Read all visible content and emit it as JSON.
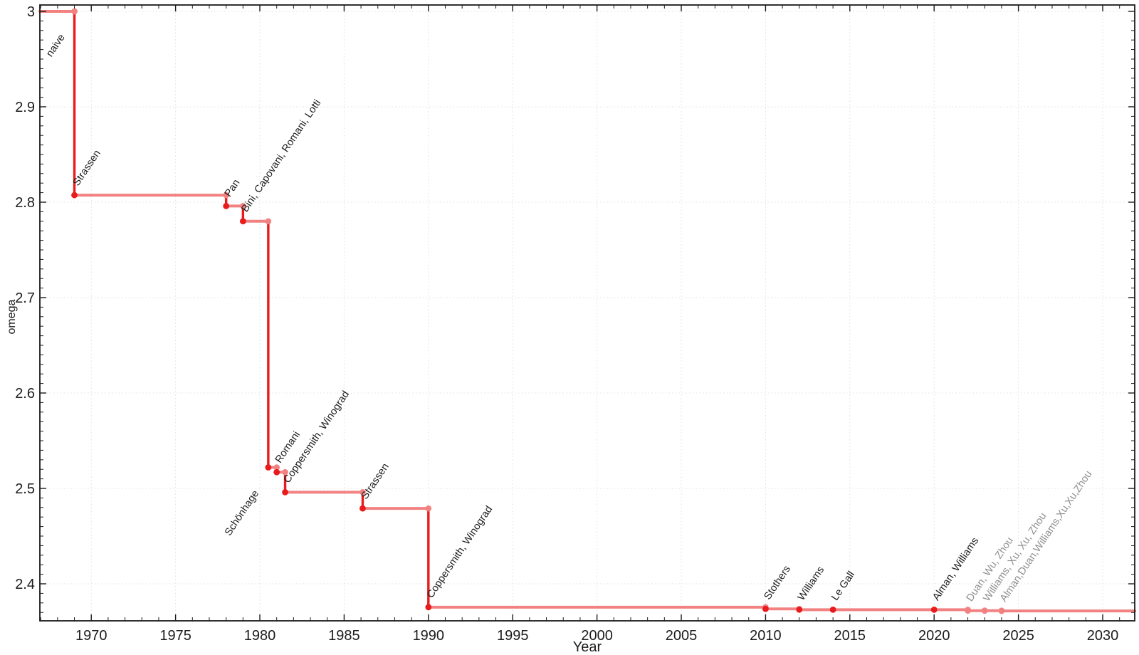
{
  "chart_data": {
    "type": "line",
    "subtype": "step-history-of-upper-bounds",
    "title": "",
    "xlabel": "Year",
    "ylabel": "omega",
    "xlim": [
      1966.95,
      2031.9
    ],
    "ylim": [
      2.3612,
      3.0067
    ],
    "x_major_ticks": [
      1970,
      1975,
      1980,
      1985,
      1990,
      1995,
      2000,
      2005,
      2010,
      2015,
      2020,
      2025,
      2030
    ],
    "x_tick_labels": [
      "1970",
      "1975",
      "1980",
      "1985",
      "1990",
      "1995",
      "2000",
      "2005",
      "2010",
      "2015",
      "2020",
      "2025",
      "2030"
    ],
    "x_minor_step": 1,
    "y_major_ticks": [
      3.0,
      2.9,
      2.8,
      2.7,
      2.6,
      2.5,
      2.4
    ],
    "y_tick_labels": [
      "3",
      "2.9",
      "2.8",
      "2.7",
      "2.6",
      "2.5",
      "2.4"
    ],
    "y_minor_step": 0.01,
    "grid": {
      "style": "dotted",
      "x_values": [
        1970,
        1975,
        1980,
        1985,
        1990,
        1995,
        2000,
        2005,
        2010,
        2015,
        2020,
        2025,
        2030
      ],
      "y_values": [
        3.0,
        2.9,
        2.8,
        2.7,
        2.6,
        2.5,
        2.4
      ]
    },
    "legend": "none",
    "initial_omega": 3.0,
    "events": [
      {
        "label": "naive",
        "year": 1969,
        "omega": 3.0,
        "marker": "pink",
        "label_color": "dark",
        "label_side": "before"
      },
      {
        "label": "Strassen",
        "year": 1969,
        "omega": 2.8074,
        "marker": "red",
        "label_color": "dark",
        "label_side": "after"
      },
      {
        "label": "Pan",
        "year": 1978,
        "omega": 2.796,
        "marker": "red",
        "label_color": "dark",
        "label_side": "after"
      },
      {
        "label": "Bini, Capovani, Romani, Lotti",
        "year": 1979,
        "omega": 2.78,
        "marker": "red",
        "label_color": "dark",
        "label_side": "after"
      },
      {
        "label": "Schönhage",
        "year": 1980.5,
        "omega": 2.522,
        "marker": "red",
        "label_color": "dark",
        "label_side": "before"
      },
      {
        "label": "Romani",
        "year": 1981,
        "omega": 2.517,
        "marker": "red",
        "label_color": "dark",
        "label_side": "after"
      },
      {
        "label": "Coppersmith, Winograd",
        "year": 1981.5,
        "omega": 2.496,
        "marker": "red",
        "label_color": "dark",
        "label_side": "after"
      },
      {
        "label": "Strassen",
        "year": 1986.1,
        "omega": 2.479,
        "marker": "red",
        "label_color": "dark",
        "label_side": "after"
      },
      {
        "label": "Coppersmith, Winograd",
        "year": 1990,
        "omega": 2.3755,
        "marker": "red",
        "label_color": "dark",
        "label_side": "after"
      },
      {
        "label": "Stothers",
        "year": 2010,
        "omega": 2.3737,
        "marker": "red",
        "label_color": "dark",
        "label_side": "after"
      },
      {
        "label": "Williams",
        "year": 2012,
        "omega": 2.3729,
        "marker": "red",
        "label_color": "dark",
        "label_side": "after"
      },
      {
        "label": "Le Gall",
        "year": 2014,
        "omega": 2.3728639,
        "marker": "red",
        "label_color": "dark",
        "label_side": "after"
      },
      {
        "label": "Alman, Williams",
        "year": 2020,
        "omega": 2.3728596,
        "marker": "red",
        "label_color": "dark",
        "label_side": "after"
      },
      {
        "label": "Duan, Wu, Zhou",
        "year": 2022,
        "omega": 2.37188,
        "marker": "pink",
        "label_color": "gray",
        "label_side": "after"
      },
      {
        "label": "Williams, Xu, Xu, Zhou",
        "year": 2023,
        "omega": 2.371866,
        "marker": "pink",
        "label_color": "gray",
        "label_side": "after"
      },
      {
        "label": "Alman,Duan,Williams,Xu,Xu,Zhou",
        "year": 2024,
        "omega": 2.371552,
        "marker": "pink",
        "label_color": "gray",
        "label_side": "after"
      }
    ],
    "colors": {
      "step_line": "#f28282",
      "drop_line": "#e81c1c",
      "marker_new": "#e81c1c",
      "marker_prev": "#f28282",
      "grid": "#e0e0e0",
      "axis": "#1a1a1a",
      "tick_label": "#1c1c1c",
      "annotation_dark": "#1c1c1c",
      "annotation_gray": "#8f8f8f",
      "background": "#ffffff"
    }
  }
}
